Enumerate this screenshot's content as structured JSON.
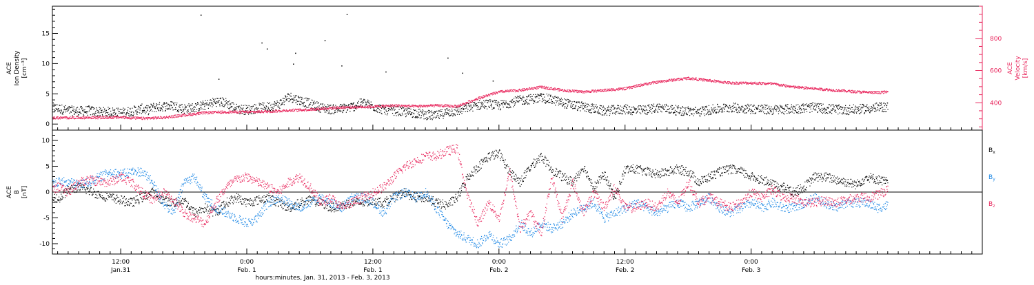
{
  "colors": {
    "black": "#000000",
    "pink": "#e8245b",
    "blue": "#1e88e5"
  },
  "chart_data": [
    {
      "type": "scatter",
      "panel": "top",
      "ylabel_lines": [
        "ACE",
        "Ion Density",
        "[cm⁻³]"
      ],
      "y2label_lines": [
        "ACE",
        "Velocity",
        "[km/s]"
      ],
      "ylim": [
        -1,
        19.5
      ],
      "yticks": [
        0,
        5,
        10,
        15
      ],
      "y2lim": [
        230,
        1000
      ],
      "y2ticks": [
        400,
        600,
        800
      ],
      "series": [
        {
          "name": "Ion Density",
          "color": "black",
          "axis": "left",
          "x": [
            5.5,
            7,
            8,
            9,
            10,
            11,
            12,
            13,
            14,
            14.5,
            15,
            16,
            17,
            18,
            19,
            20,
            21,
            22,
            23,
            24,
            25,
            26,
            27,
            28,
            29,
            30,
            31,
            32,
            33,
            34,
            35,
            36,
            37,
            38,
            39,
            40,
            41,
            42,
            43,
            44,
            45,
            46,
            47,
            48,
            49,
            50,
            51,
            52,
            53,
            54,
            55,
            56,
            57,
            58,
            59,
            60,
            61,
            62,
            63,
            64,
            65,
            66,
            67,
            68,
            69,
            70,
            71,
            72,
            73,
            74,
            75,
            76,
            77,
            78,
            79,
            80,
            81,
            82,
            83,
            84,
            85
          ],
          "y": [
            2.8,
            2.3,
            2.2,
            2.3,
            2.0,
            2.1,
            1.9,
            2.2,
            2.6,
            2.3,
            2.8,
            3.0,
            3.1,
            2.6,
            2.8,
            3.2,
            3.8,
            3.6,
            2.6,
            2.4,
            2.7,
            2.9,
            3.3,
            4.6,
            4.0,
            3.4,
            2.8,
            2.5,
            2.6,
            2.9,
            3.6,
            3.0,
            2.4,
            2.3,
            2.0,
            1.9,
            1.6,
            1.4,
            2.0,
            2.2,
            2.8,
            3.2,
            3.4,
            3.1,
            3.6,
            4.0,
            4.2,
            4.4,
            4.1,
            3.6,
            3.2,
            2.9,
            2.6,
            2.2,
            2.4,
            2.5,
            2.3,
            2.4,
            2.8,
            2.6,
            2.3,
            2.2,
            2.1,
            2.4,
            2.6,
            2.8,
            2.7,
            2.6,
            2.5,
            2.4,
            2.5,
            2.6,
            2.7,
            2.8,
            2.6,
            2.5,
            2.4,
            2.5,
            2.6,
            2.8,
            2.9
          ],
          "spikes_x": [
            19.6,
            25.4,
            21.3,
            25.9,
            28.4,
            28.6,
            31.4,
            33.0,
            37.2,
            33.5,
            43.1,
            44.5,
            47.4
          ],
          "spikes_y": [
            18.1,
            13.5,
            7.5,
            12.5,
            10.0,
            11.8,
            13.9,
            9.7,
            8.7,
            18.2,
            11.0,
            8.5,
            7.2
          ]
        },
        {
          "name": "Velocity",
          "color": "pink",
          "axis": "right",
          "x": [
            5.5,
            8,
            10,
            12,
            14,
            16,
            18,
            20,
            22,
            24,
            26,
            28,
            30,
            32,
            34,
            36,
            38,
            40,
            42,
            44,
            46,
            48,
            50,
            52,
            54,
            56,
            58,
            60,
            62,
            64,
            66,
            68,
            70,
            72,
            74,
            76,
            78,
            80,
            82,
            84,
            85
          ],
          "y": [
            308,
            310,
            310,
            312,
            305,
            310,
            325,
            340,
            345,
            345,
            348,
            355,
            360,
            370,
            375,
            378,
            385,
            380,
            385,
            380,
            430,
            470,
            480,
            500,
            480,
            470,
            480,
            490,
            520,
            540,
            555,
            540,
            525,
            525,
            520,
            500,
            490,
            480,
            470,
            465,
            470
          ]
        }
      ]
    },
    {
      "type": "scatter",
      "panel": "bottom",
      "ylabel_lines": [
        "ACE",
        "B",
        "[nT]"
      ],
      "ylim": [
        -12,
        12
      ],
      "yticks": [
        -10,
        -5,
        0,
        5,
        10
      ],
      "xlabel": "hours:minutes, Jan. 31, 2013 - Feb. 3, 2013",
      "xlim": [
        5.5,
        94
      ],
      "x_ticks": [
        {
          "x": 12,
          "time": "12:00",
          "date": "Jan.31"
        },
        {
          "x": 24,
          "time": "0:00",
          "date": "Feb. 1"
        },
        {
          "x": 36,
          "time": "12:00",
          "date": "Feb. 1"
        },
        {
          "x": 48,
          "time": "0:00",
          "date": "Feb. 2"
        },
        {
          "x": 60,
          "time": "12:00",
          "date": "Feb. 2"
        },
        {
          "x": 72,
          "time": "0:00",
          "date": "Feb. 3"
        }
      ],
      "x_minor_step": 1,
      "legend": [
        "Bx",
        "By",
        "Bz"
      ],
      "series": [
        {
          "name": "Bx",
          "label_main": "B",
          "label_sub": "x",
          "color": "black",
          "x": [
            5.5,
            6,
            7,
            8,
            9,
            10,
            11,
            12,
            13,
            14,
            15,
            16,
            17,
            18,
            19,
            20,
            21,
            22,
            23,
            24,
            25,
            26,
            27,
            28,
            29,
            30,
            31,
            32,
            33,
            34,
            35,
            36,
            37,
            38,
            39,
            40,
            41,
            42,
            43,
            44,
            45,
            46,
            47,
            48,
            49,
            50,
            51,
            52,
            53,
            54,
            55,
            56,
            57,
            58,
            59,
            60,
            61,
            62,
            63,
            64,
            65,
            66,
            67,
            68,
            69,
            70,
            71,
            72,
            73,
            74,
            75,
            76,
            77,
            78,
            79,
            80,
            81,
            82,
            83,
            84,
            85
          ],
          "y": [
            -0.5,
            -1.5,
            0.5,
            1.0,
            0.3,
            -0.5,
            -1.0,
            -1.5,
            -2.0,
            -1.0,
            0,
            -1.5,
            -2.0,
            -1.5,
            -4.0,
            -3.0,
            -4.0,
            -2.0,
            -1.0,
            -2.0,
            -1.5,
            -1.0,
            -2.0,
            -3.0,
            -2.0,
            -1.5,
            -2.0,
            -3.0,
            -2.5,
            -2.0,
            -2.0,
            -1.5,
            -2.0,
            -1.0,
            0,
            -1.0,
            -1.0,
            -2.0,
            -2.5,
            -1.0,
            3.0,
            5.0,
            7.0,
            7.5,
            4.0,
            2.0,
            5.0,
            7.0,
            4.5,
            3.0,
            2.0,
            5.0,
            1.0,
            3.5,
            -1.0,
            4.5,
            4.5,
            4.0,
            3.5,
            4.0,
            4.5,
            4.0,
            2.0,
            3.0,
            4.0,
            4.5,
            4.0,
            3.0,
            2.5,
            1.5,
            1.0,
            0,
            1.0,
            3.0,
            3.0,
            2.5,
            2.0,
            1.5,
            3.0,
            2.5,
            2.0
          ]
        },
        {
          "name": "By",
          "label_main": "B",
          "label_sub": "y",
          "color": "blue",
          "x": [
            5.5,
            6,
            7,
            8,
            9,
            10,
            11,
            12,
            13,
            14,
            15,
            16,
            17,
            18,
            19,
            20,
            21,
            22,
            23,
            24,
            25,
            26,
            27,
            28,
            29,
            30,
            31,
            32,
            33,
            34,
            35,
            36,
            37,
            38,
            39,
            40,
            41,
            42,
            43,
            44,
            45,
            46,
            47,
            48,
            49,
            50,
            51,
            52,
            53,
            54,
            55,
            56,
            57,
            58,
            59,
            60,
            61,
            62,
            63,
            64,
            65,
            66,
            67,
            68,
            69,
            70,
            71,
            72,
            73,
            74,
            75,
            76,
            77,
            78,
            79,
            80,
            81,
            82,
            83,
            84,
            85
          ],
          "y": [
            1.5,
            2.0,
            2.0,
            1.5,
            2.0,
            3.0,
            4.0,
            3.5,
            4.0,
            4.0,
            2.0,
            -2.0,
            -4.0,
            2.0,
            3.0,
            -1.0,
            -3.0,
            -4.0,
            -5.0,
            -6.0,
            -5.0,
            -2.0,
            -1.0,
            -2.0,
            -3.0,
            -2.0,
            -1.0,
            -2.0,
            -3.0,
            -1.0,
            -1.0,
            -2.0,
            -4.0,
            -1.0,
            0,
            -1.0,
            0,
            -3.0,
            -6.0,
            -8.0,
            -9.0,
            -10.0,
            -8.0,
            -10.0,
            -9.0,
            -6.0,
            -8.0,
            -6.0,
            -7.0,
            -6.0,
            -4.0,
            -3.0,
            -2.0,
            -5.0,
            -4.0,
            -3.0,
            -2.0,
            -3.0,
            -4.0,
            -3.0,
            -2.0,
            -3.0,
            -2.0,
            -1.0,
            -3.0,
            -4.0,
            -3.0,
            -2.0,
            -3.0,
            -2.0,
            -3.0,
            -3.0,
            -2.0,
            -1.0,
            -2.0,
            -3.0,
            -2.0,
            -2.0,
            -2.0,
            -3.0,
            -2.5
          ]
        },
        {
          "name": "Bz",
          "label_main": "B",
          "label_sub": "z",
          "color": "pink",
          "x": [
            5.5,
            6,
            7,
            8,
            9,
            10,
            11,
            12,
            13,
            14,
            15,
            16,
            17,
            18,
            19,
            20,
            21,
            22,
            23,
            24,
            25,
            26,
            27,
            28,
            29,
            30,
            31,
            32,
            33,
            34,
            35,
            36,
            37,
            38,
            39,
            40,
            41,
            42,
            43,
            44,
            45,
            46,
            47,
            48,
            49,
            50,
            51,
            52,
            53,
            54,
            55,
            56,
            57,
            58,
            59,
            60,
            61,
            62,
            63,
            64,
            65,
            66,
            67,
            68,
            69,
            70,
            71,
            72,
            73,
            74,
            75,
            76,
            77,
            78,
            79,
            80,
            81,
            82,
            83,
            84,
            85
          ],
          "y": [
            0.5,
            1.0,
            0,
            2.0,
            2.5,
            2.0,
            2.0,
            3.0,
            2.0,
            0,
            -1.5,
            0,
            -1.5,
            -4.0,
            -5.0,
            -6.0,
            -2.0,
            1.0,
            2.5,
            3.0,
            2.0,
            1.0,
            0,
            2.0,
            3.0,
            1.0,
            -2.0,
            -1.0,
            -3.0,
            -2.0,
            -1.0,
            0,
            1.0,
            3.0,
            5.0,
            6.0,
            7.0,
            7.0,
            8.0,
            8.5,
            -1.0,
            -6.0,
            -2.0,
            -5.0,
            4.0,
            -7.0,
            -4.0,
            -8.0,
            3.0,
            -5.0,
            2.0,
            -4.0,
            0,
            -3.0,
            1.0,
            -3.0,
            -3.0,
            -2.0,
            -3.0,
            0,
            -2.0,
            2.0,
            -2.0,
            -1.0,
            -2.0,
            -3.0,
            -2.0,
            0,
            -1.0,
            0.5,
            -1.0,
            -1.0,
            -2.0,
            -2.0,
            -1.5,
            -2.0,
            -1.5,
            -1.0,
            -1.0,
            -0.5,
            0.5
          ]
        }
      ]
    }
  ]
}
